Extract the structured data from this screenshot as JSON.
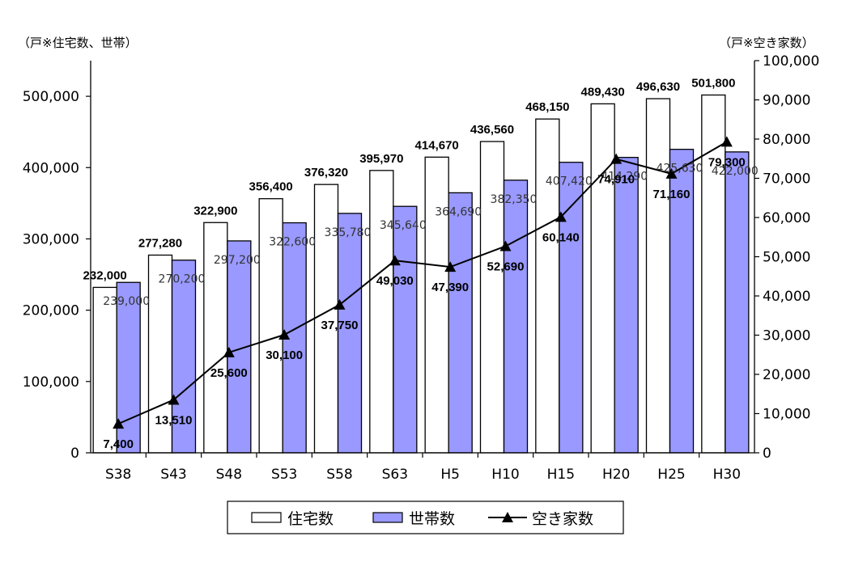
{
  "chart_data": {
    "type": "bar",
    "categories": [
      "S38",
      "S43",
      "S48",
      "S53",
      "S58",
      "S63",
      "H5",
      "H10",
      "H15",
      "H20",
      "H25",
      "H30"
    ],
    "series": [
      {
        "name": "住宅数",
        "type": "bar",
        "axis": "left",
        "color": "#ffffff",
        "values": [
          232000,
          277280,
          322900,
          356400,
          376320,
          395970,
          414670,
          436560,
          468150,
          489430,
          496630,
          501800
        ]
      },
      {
        "name": "世帯数",
        "type": "bar",
        "axis": "left",
        "color": "#9999ff",
        "values": [
          239000,
          270200,
          297200,
          322600,
          335780,
          345640,
          364690,
          382350,
          407420,
          414290,
          425630,
          422000
        ]
      },
      {
        "name": "空き家数",
        "type": "line",
        "axis": "right",
        "color": "#000000",
        "marker": "triangle",
        "values": [
          7400,
          13510,
          25600,
          30100,
          37750,
          49030,
          47390,
          52690,
          60140,
          74910,
          71160,
          79300
        ]
      }
    ],
    "left_axis": {
      "unit_label": "（戸※住宅数、世帯）",
      "ylim": [
        0,
        550000
      ],
      "ticks": [
        0,
        100000,
        200000,
        300000,
        400000,
        500000
      ]
    },
    "right_axis": {
      "unit_label": "（戸※空き家数）",
      "ylim": [
        0,
        100000
      ],
      "ticks": [
        0,
        10000,
        20000,
        30000,
        40000,
        50000,
        60000,
        70000,
        80000,
        90000,
        100000
      ]
    },
    "grid": false,
    "legend_position": "bottom-center"
  }
}
